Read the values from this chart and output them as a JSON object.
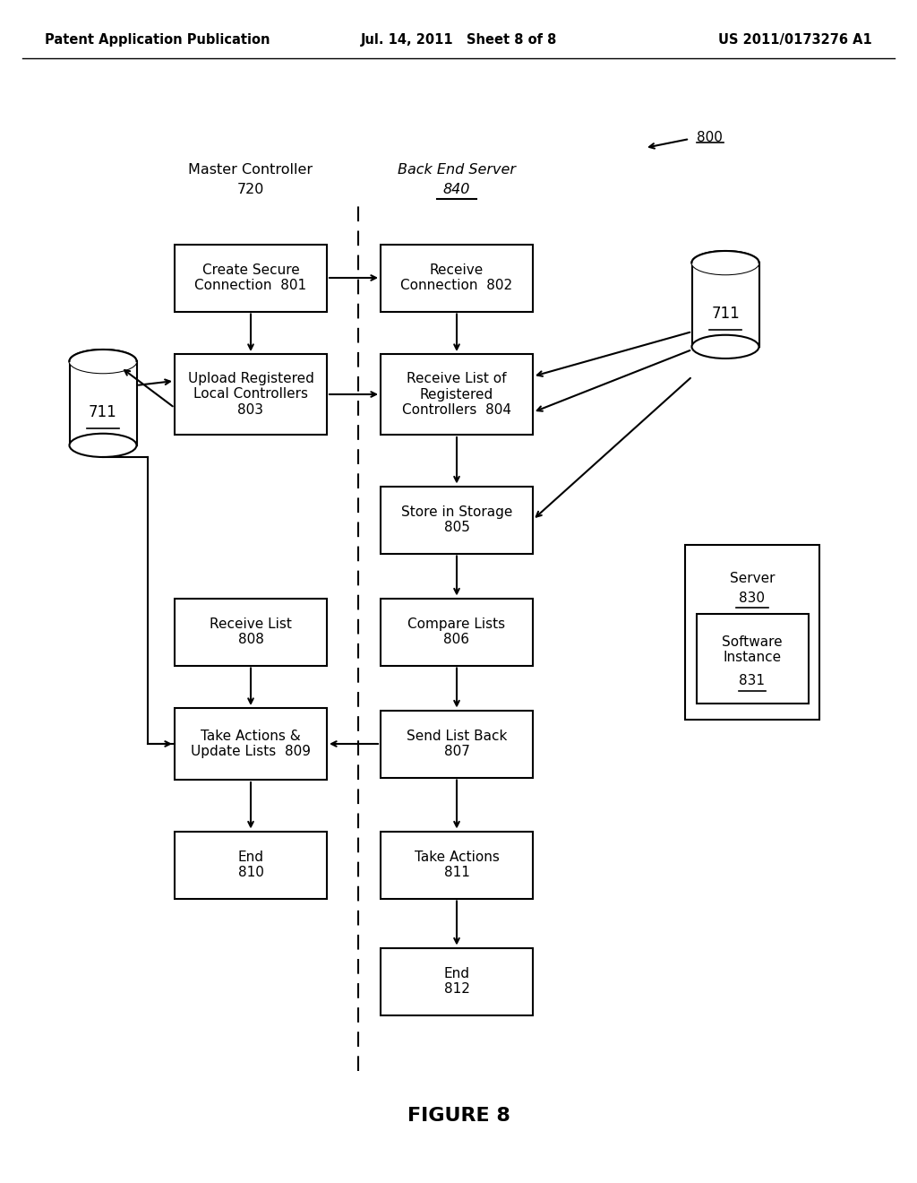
{
  "header_left": "Patent Application Publication",
  "header_center": "Jul. 14, 2011   Sheet 8 of 8",
  "header_right": "US 2011/0173276 A1",
  "figure_label": "FIGURE 8",
  "col1_header1": "Master Controller",
  "col1_header2": "720",
  "col2_header1": "Back End Server",
  "col2_header2": "840",
  "bg_color": "#ffffff"
}
